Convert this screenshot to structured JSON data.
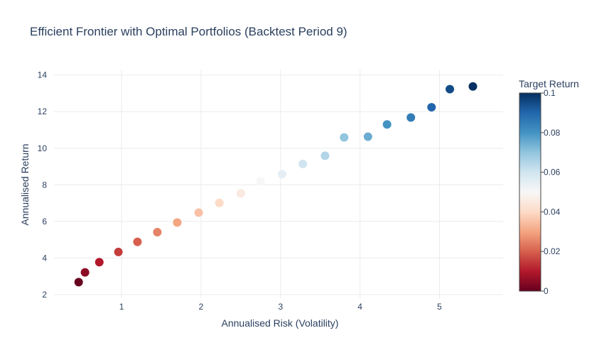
{
  "chart_data": {
    "type": "scatter",
    "title": "Efficient Frontier with Optimal Portfolios (Backtest Period 9)",
    "xlabel": "Annualised Risk (Volatility)",
    "ylabel": "Annualised Return",
    "xlim": [
      0.15,
      5.8
    ],
    "ylim": [
      1.8,
      14.3
    ],
    "x_ticks": [
      1,
      2,
      3,
      4,
      5
    ],
    "y_ticks": [
      2,
      4,
      6,
      8,
      10,
      12,
      14
    ],
    "grid": true,
    "marker_colorscale": "RdBu",
    "colorbar": {
      "title": "Target Return",
      "range": [
        0,
        0.1
      ],
      "ticks": [
        0,
        0.02,
        0.04,
        0.06,
        0.08,
        0.1
      ],
      "tick_labels": [
        "0",
        "0.02",
        "0.04",
        "0.06",
        "0.08",
        "0.1"
      ],
      "placement": "right"
    },
    "points": [
      {
        "x": 0.46,
        "y": 2.68,
        "c": 0.0
      },
      {
        "x": 0.54,
        "y": 3.21,
        "c": 0.005
      },
      {
        "x": 0.72,
        "y": 3.77,
        "c": 0.01
      },
      {
        "x": 0.96,
        "y": 4.33,
        "c": 0.015
      },
      {
        "x": 1.2,
        "y": 4.88,
        "c": 0.02
      },
      {
        "x": 1.45,
        "y": 5.41,
        "c": 0.025
      },
      {
        "x": 1.7,
        "y": 5.94,
        "c": 0.03
      },
      {
        "x": 1.97,
        "y": 6.48,
        "c": 0.035
      },
      {
        "x": 2.23,
        "y": 7.01,
        "c": 0.04
      },
      {
        "x": 2.5,
        "y": 7.53,
        "c": 0.045
      },
      {
        "x": 2.75,
        "y": 8.2,
        "c": 0.05
      },
      {
        "x": 3.02,
        "y": 8.58,
        "c": 0.055
      },
      {
        "x": 3.28,
        "y": 9.14,
        "c": 0.06
      },
      {
        "x": 3.56,
        "y": 9.59,
        "c": 0.065
      },
      {
        "x": 3.8,
        "y": 10.59,
        "c": 0.07
      },
      {
        "x": 4.1,
        "y": 10.63,
        "c": 0.075
      },
      {
        "x": 4.34,
        "y": 11.3,
        "c": 0.08
      },
      {
        "x": 4.64,
        "y": 11.68,
        "c": 0.085
      },
      {
        "x": 4.9,
        "y": 12.24,
        "c": 0.09
      },
      {
        "x": 5.13,
        "y": 13.23,
        "c": 0.095
      },
      {
        "x": 5.42,
        "y": 13.38,
        "c": 0.1
      }
    ]
  }
}
